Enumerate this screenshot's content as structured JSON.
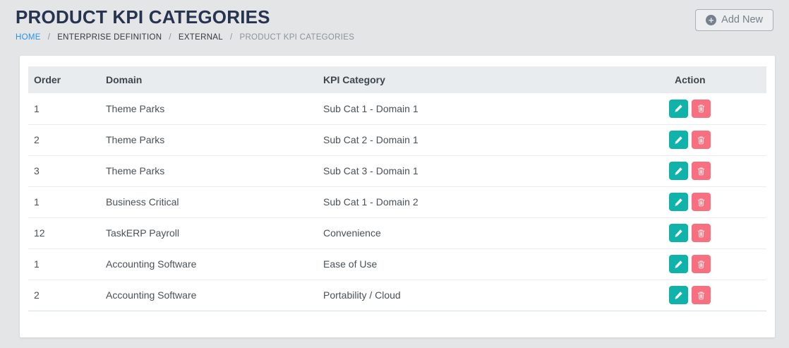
{
  "page": {
    "title": "PRODUCT KPI CATEGORIES",
    "breadcrumb": {
      "separator": "/",
      "items": [
        {
          "label": "HOME"
        },
        {
          "label": "ENTERPRISE DEFINITION"
        },
        {
          "label": "EXTERNAL"
        },
        {
          "label": "PRODUCT KPI CATEGORIES"
        }
      ]
    },
    "add_new_label": "Add New"
  },
  "icons": {
    "plus_circle_glyph": "+",
    "edit": "pencil-icon",
    "delete": "trash-icon"
  },
  "colors": {
    "page_background": "#e4e5e7",
    "title_navy": "#263450",
    "link_blue": "#2794ec",
    "accent_teal": "#10b3a9",
    "danger_pink": "#f8707f",
    "table_header_bg": "#e9ecef",
    "muted_gray": "#76818d"
  },
  "table": {
    "columns": [
      "Order",
      "Domain",
      "KPI Category",
      "Action"
    ],
    "rows": [
      {
        "order": "1",
        "domain": "Theme Parks",
        "kpi_category": "Sub Cat 1 - Domain 1"
      },
      {
        "order": "2",
        "domain": "Theme Parks",
        "kpi_category": "Sub Cat 2 - Domain 1"
      },
      {
        "order": "3",
        "domain": "Theme Parks",
        "kpi_category": "Sub Cat 3 - Domain 1"
      },
      {
        "order": "1",
        "domain": "Business Critical",
        "kpi_category": "Sub Cat 1 - Domain 2"
      },
      {
        "order": "12",
        "domain": "TaskERP Payroll",
        "kpi_category": "Convenience"
      },
      {
        "order": "1",
        "domain": "Accounting Software",
        "kpi_category": "Ease of Use"
      },
      {
        "order": "2",
        "domain": "Accounting Software",
        "kpi_category": "Portability / Cloud"
      }
    ]
  }
}
